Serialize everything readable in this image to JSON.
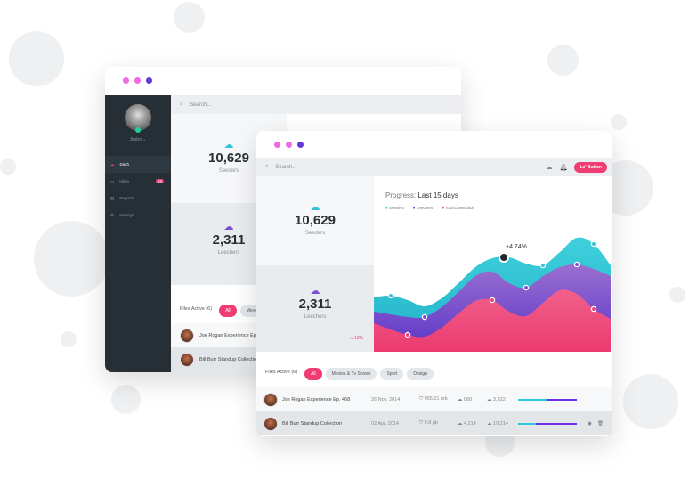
{
  "colors": {
    "seeders": "#33c3d6",
    "leechers": "#7a4fd0",
    "downloads": "#ee3e74",
    "accent": "#ef3d74",
    "sidebar": "#262f36",
    "dot1": "#f06be0",
    "dot2": "#f06be0",
    "dot3": "#6438d6"
  },
  "back_window": {
    "user": {
      "name": "Jimbo",
      "status": "online"
    },
    "nav": [
      {
        "label": "Dash",
        "icon": "cloud-icon",
        "active": true
      },
      {
        "label": "Inbox",
        "icon": "inbox-icon",
        "badge": "18"
      },
      {
        "label": "Reports",
        "icon": "chart-icon"
      },
      {
        "label": "Settings",
        "icon": "gear-icon"
      }
    ],
    "search_placeholder": "Search...",
    "seeders": {
      "value": "10,629",
      "label": "Seeders"
    },
    "leechers": {
      "value": "2,311",
      "label": "Leechers"
    },
    "files_title": "Files Active (6)",
    "filters": [
      "All",
      "Movies"
    ],
    "rows": [
      "Joe Rogan Experience Ep. 468",
      "Bill Burr Standup Collection"
    ]
  },
  "front_window": {
    "search_placeholder": "Search...",
    "button": "Le' Button",
    "seeders": {
      "value": "10,629",
      "label": "Seeders"
    },
    "leechers": {
      "value": "2,311",
      "label": "Leechers",
      "change": "12%"
    },
    "progress_label": "Progress:",
    "progress_range": "Last 15 days",
    "legend": [
      "Seeders",
      "Leechers",
      "Total Downloads"
    ],
    "files_title": "Files Active (6)",
    "filters": [
      "All",
      "Movies & Tv Shows",
      "Sport",
      "Design"
    ],
    "rows": [
      {
        "name": "Joe Rogan Experience Ep. 468",
        "date": "26 Nov, 2014",
        "size": "965.21 mb",
        "down": "860",
        "up": "3,522",
        "progress": 0.5
      },
      {
        "name": "Bill Burr Standup Collection",
        "date": "02 Apr, 2014",
        "size": "9.8 gb",
        "down": "4,214",
        "up": "19,214",
        "progress": 0.3
      }
    ]
  },
  "chart_data": {
    "type": "area",
    "x": [
      1,
      2,
      3,
      4,
      5,
      6,
      7,
      8,
      9,
      10,
      11,
      12,
      13,
      14,
      15
    ],
    "ylim": [
      0,
      140
    ],
    "grid": false,
    "legend_position": "top-left",
    "series": [
      {
        "name": "Seeders",
        "values": [
          61,
          63,
          58,
          51,
          60,
          77,
          95,
          105,
          106,
          99,
          97,
          112,
          128,
          121,
          97
        ],
        "markers": [
          1,
          10,
          13
        ]
      },
      {
        "name": "Leechers",
        "values": [
          45,
          42,
          39,
          39,
          50,
          67,
          85,
          90,
          77,
          72,
          85,
          95,
          98,
          93,
          85
        ],
        "markers": [
          3,
          9,
          12
        ]
      },
      {
        "name": "Total Downloads",
        "values": [
          32,
          25,
          19,
          17,
          27,
          43,
          57,
          58,
          45,
          40,
          55,
          69,
          65,
          48,
          37
        ],
        "markers": [
          2,
          7,
          13
        ]
      }
    ],
    "annotation": {
      "series": 0,
      "index": 8,
      "text": "+4.74%"
    }
  }
}
